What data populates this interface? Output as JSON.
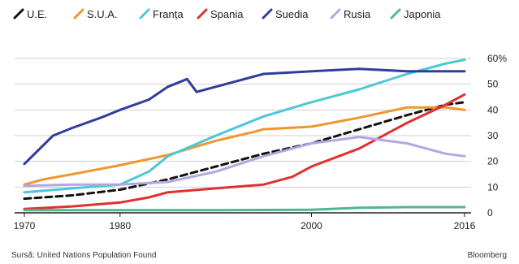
{
  "chart_data": {
    "type": "line",
    "title": "",
    "xlabel": "",
    "ylabel": "",
    "xlim": [
      1970,
      2016
    ],
    "ylim": [
      0,
      60
    ],
    "x_ticks": [
      "1970",
      "1980",
      "2000",
      "2016"
    ],
    "y_ticks": [
      "0",
      "10",
      "20",
      "30",
      "40",
      "50",
      "60%"
    ],
    "grid": "horizontal",
    "legend_position": "top",
    "series": [
      {
        "name": "U.E.",
        "color": "#111111",
        "dashed": true,
        "points": [
          [
            1970,
            5.5
          ],
          [
            1975,
            6.8
          ],
          [
            1980,
            9
          ],
          [
            1985,
            13
          ],
          [
            1990,
            18
          ],
          [
            1995,
            23
          ],
          [
            2000,
            27
          ],
          [
            2005,
            32.5
          ],
          [
            2010,
            38
          ],
          [
            2014,
            42
          ],
          [
            2016,
            43
          ]
        ]
      },
      {
        "name": "S.U.A.",
        "color": "#f0962e",
        "points": [
          [
            1970,
            11
          ],
          [
            1972,
            13
          ],
          [
            1975,
            15
          ],
          [
            1980,
            18.5
          ],
          [
            1985,
            22.5
          ],
          [
            1990,
            28
          ],
          [
            1994,
            31.5
          ],
          [
            1995,
            32.5
          ],
          [
            2000,
            33.5
          ],
          [
            2005,
            37
          ],
          [
            2010,
            41
          ],
          [
            2014,
            41
          ],
          [
            2016,
            40
          ]
        ]
      },
      {
        "name": "Franța",
        "color": "#4cc7d6",
        "points": [
          [
            1970,
            8
          ],
          [
            1975,
            9.5
          ],
          [
            1980,
            11
          ],
          [
            1983,
            16
          ],
          [
            1985,
            22
          ],
          [
            1990,
            30
          ],
          [
            1995,
            37.5
          ],
          [
            2000,
            43
          ],
          [
            2005,
            48
          ],
          [
            2010,
            54
          ],
          [
            2014,
            58
          ],
          [
            2016,
            59.5
          ]
        ]
      },
      {
        "name": "Spania",
        "color": "#e03030",
        "points": [
          [
            1970,
            1.5
          ],
          [
            1975,
            2.5
          ],
          [
            1980,
            4
          ],
          [
            1983,
            6
          ],
          [
            1985,
            8
          ],
          [
            1990,
            9.5
          ],
          [
            1995,
            11
          ],
          [
            1998,
            14
          ],
          [
            2000,
            18
          ],
          [
            2005,
            25
          ],
          [
            2010,
            35
          ],
          [
            2014,
            42
          ],
          [
            2016,
            46
          ]
        ]
      },
      {
        "name": "Suedia",
        "color": "#2f3e9e",
        "points": [
          [
            1970,
            19
          ],
          [
            1973,
            30
          ],
          [
            1975,
            33
          ],
          [
            1978,
            37
          ],
          [
            1980,
            40
          ],
          [
            1983,
            44
          ],
          [
            1985,
            49
          ],
          [
            1987,
            52
          ],
          [
            1988,
            47
          ],
          [
            1990,
            49
          ],
          [
            1995,
            54
          ],
          [
            2000,
            55
          ],
          [
            2005,
            56
          ],
          [
            2010,
            55
          ],
          [
            2016,
            55
          ]
        ]
      },
      {
        "name": "Rusia",
        "color": "#b4a6e0",
        "points": [
          [
            1970,
            10.5
          ],
          [
            1975,
            11
          ],
          [
            1980,
            11
          ],
          [
            1985,
            12
          ],
          [
            1990,
            16
          ],
          [
            1995,
            22
          ],
          [
            2000,
            27
          ],
          [
            2005,
            29.5
          ],
          [
            2010,
            27
          ],
          [
            2014,
            23
          ],
          [
            2016,
            22
          ]
        ]
      },
      {
        "name": "Japonia",
        "color": "#4fb88c",
        "points": [
          [
            1970,
            1
          ],
          [
            1975,
            1
          ],
          [
            1980,
            1
          ],
          [
            1990,
            1
          ],
          [
            2000,
            1.2
          ],
          [
            2005,
            2
          ],
          [
            2010,
            2.2
          ],
          [
            2016,
            2.2
          ]
        ]
      }
    ]
  },
  "footer": {
    "source": "Sursă: United Nations Population Found",
    "brand": "Bloomberg"
  }
}
